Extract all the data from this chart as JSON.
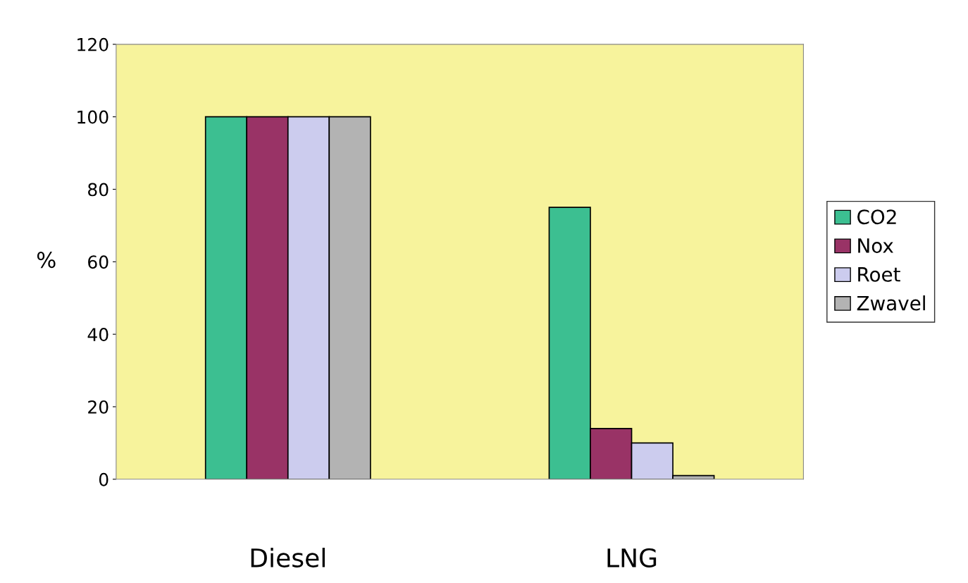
{
  "chart_data": {
    "type": "bar",
    "categories": [
      "Diesel",
      "LNG"
    ],
    "ylabel": "%",
    "series": [
      {
        "name": "CO2",
        "color": "#3cbf91",
        "values": [
          100,
          75
        ]
      },
      {
        "name": "Nox",
        "color": "#993366",
        "values": [
          100,
          14
        ]
      },
      {
        "name": "Roet",
        "color": "#ccccee",
        "values": [
          100,
          10
        ]
      },
      {
        "name": "Zwavel",
        "color": "#b3b3b3",
        "values": [
          100,
          1
        ]
      }
    ],
    "ylim": [
      0,
      120
    ],
    "yticks": [
      0,
      20,
      40,
      60,
      80,
      100,
      120
    ],
    "grid": false,
    "legend": "right"
  }
}
